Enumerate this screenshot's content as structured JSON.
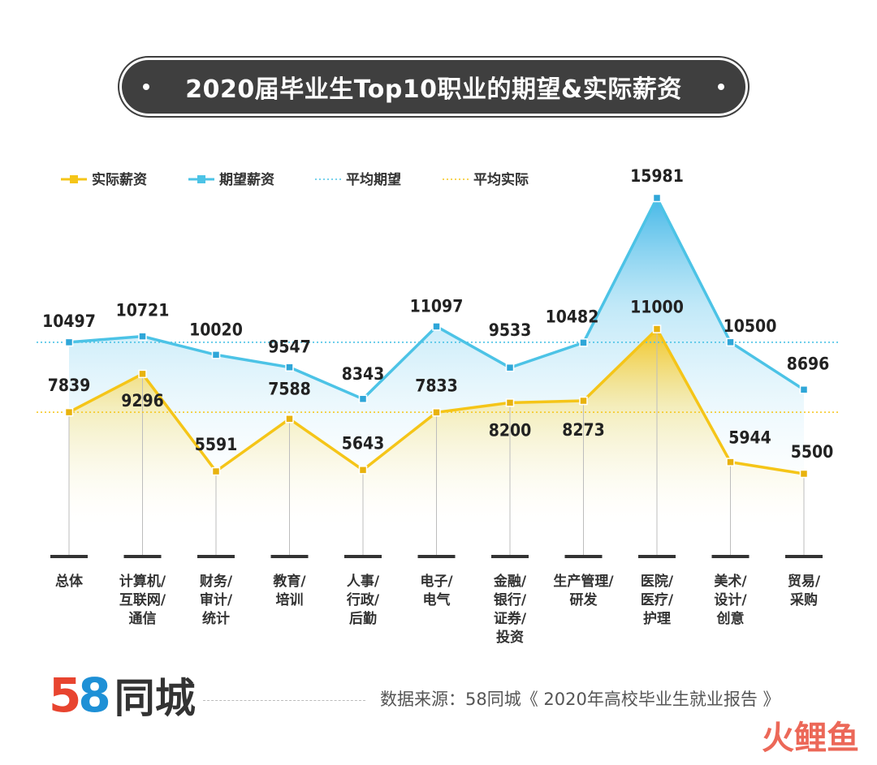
{
  "title": "• 2020届毕业生Top10职业的期望&实际薪资 •",
  "title_text": "2020届毕业生Top10职业的期望&实际薪资",
  "legend": {
    "actual": "实际薪资",
    "expected": "期望薪资",
    "avg_expected": "平均期望",
    "avg_actual": "平均实际"
  },
  "colors": {
    "actual": "#f5c518",
    "expected": "#4cc3e6",
    "title_bg": "#3f3f3f"
  },
  "chart_data": {
    "type": "line",
    "categories": [
      [
        "总体"
      ],
      [
        "计算机/",
        "互联网/",
        "通信"
      ],
      [
        "财务/",
        "审计/",
        "统计"
      ],
      [
        "教育/",
        "培训"
      ],
      [
        "人事/",
        "行政/",
        "后勤"
      ],
      [
        "电子/",
        "电气"
      ],
      [
        "金融/",
        "银行/",
        "证券/",
        "投资"
      ],
      [
        "生产管理/",
        "研发"
      ],
      [
        "医院/",
        "医疗/",
        "护理"
      ],
      [
        "美术/",
        "设计/",
        "创意"
      ],
      [
        "贸易/",
        "采购"
      ]
    ],
    "series": [
      {
        "name": "期望薪资",
        "values": [
          10497,
          10721,
          10020,
          9547,
          8343,
          11097,
          9533,
          10482,
          15981,
          10500,
          8696
        ]
      },
      {
        "name": "实际薪资",
        "values": [
          7839,
          9296,
          5591,
          7588,
          5643,
          7833,
          8200,
          8273,
          11000,
          5944,
          5500
        ]
      }
    ],
    "reference_lines": [
      {
        "name": "平均期望",
        "value": 10497
      },
      {
        "name": "平均实际",
        "value": 7839
      }
    ]
  },
  "footer": {
    "logo_digit_5": "5",
    "logo_digit_8": "8",
    "logo_text": "同城",
    "source": "数据来源：58同城《 2020年高校毕业生就业报告 》"
  },
  "watermark": "火鲤鱼"
}
